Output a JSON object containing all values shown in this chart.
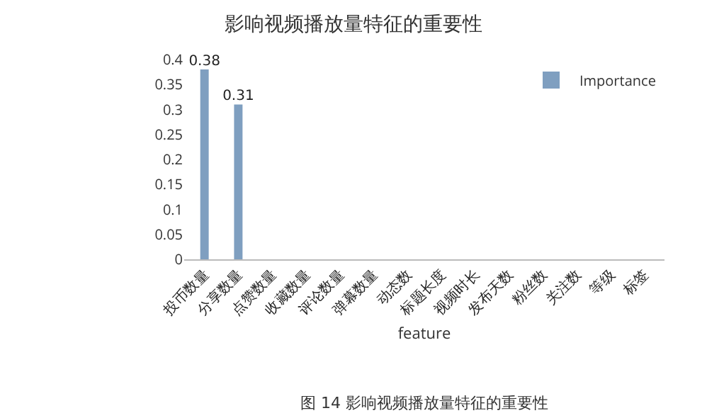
{
  "chart_data": {
    "type": "bar",
    "title": "影响视频播放量特征的重要性",
    "xlabel": "feature",
    "categories": [
      "投币数量",
      "分享数量",
      "点赞数量",
      "收藏数量",
      "评论数量",
      "弹幕数量",
      "动态数",
      "标题长度",
      "视频时长",
      "发布天数",
      "粉丝数",
      "关注数",
      "等级",
      "标签"
    ],
    "series": [
      {
        "name": "Importance",
        "color": "#7f9fc0",
        "values": [
          0.38,
          0.31,
          null,
          null,
          null,
          null,
          null,
          null,
          null,
          null,
          null,
          null,
          null,
          null
        ],
        "value_labels": [
          "0.38",
          "0.31",
          null,
          null,
          null,
          null,
          null,
          null,
          null,
          null,
          null,
          null,
          null,
          null
        ]
      }
    ],
    "ylim": [
      0,
      0.4
    ],
    "yticks": [
      0,
      0.05,
      0.1,
      0.15,
      0.2,
      0.25,
      0.3,
      0.35,
      0.4
    ],
    "grid": false,
    "legend": "top right",
    "annotations": [
      "图 14 影响视频播放量特征的重要性"
    ]
  }
}
